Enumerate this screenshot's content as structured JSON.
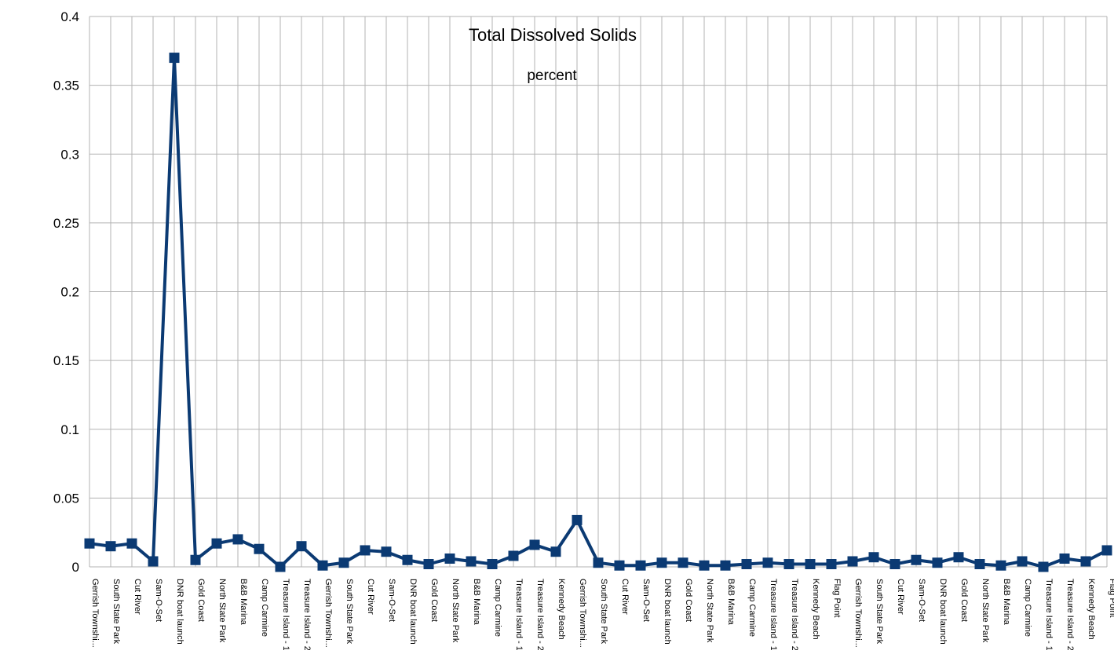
{
  "chart_data": {
    "type": "line",
    "title": "Total Dissolved Solids",
    "subtitle": "percent",
    "xlabel": "",
    "ylabel": "",
    "ylim": [
      0,
      0.4
    ],
    "yticks": [
      "0",
      "0.05",
      "0.1",
      "0.15",
      "0.2",
      "0.25",
      "0.3",
      "0.35",
      "0.4"
    ],
    "grid": true,
    "legend": "none",
    "categories": [
      "Gerrish Townshi...",
      "South State Park",
      "Cut River",
      "Sam-O-Set",
      "DNR boat launch",
      "Gold Coast",
      "North State Park",
      "B&B Marina",
      "Camp Carmine",
      "Treasure Island - 1",
      "Treasure Island - 2",
      "Gerrish Townshi...",
      "South State Park",
      "Cut River",
      "Sam-O-Set",
      "DNR boat launch",
      "Gold Coast",
      "North State Park",
      "B&B Marina",
      "Camp Carmine",
      "Treasure Island - 1",
      "Treasure Island - 2",
      "Kennedy Beach",
      "Gerrish Townshi...",
      "South State Park",
      "Cut River",
      "Sam-O-Set",
      "DNR boat launch",
      "Gold Coast",
      "North State Park",
      "B&B Marina",
      "Camp Carmine",
      "Treasure Island - 1",
      "Treasure Island - 2",
      "Kennedy Beach",
      "Flag Point",
      "Gerrish Townshi...",
      "South State Park",
      "Cut River",
      "Sam-O-Set",
      "DNR boat launch",
      "Gold Coast",
      "North State Park",
      "B&B Marina",
      "Camp Carmine",
      "Treasure Island - 1",
      "Treasure Island - 2",
      "Kennedy Beach",
      "Flag Point"
    ],
    "series": [
      {
        "values": [
          0.017,
          0.015,
          0.017,
          0.004,
          0.37,
          0.005,
          0.017,
          0.02,
          0.013,
          0.0,
          0.015,
          0.001,
          0.003,
          0.012,
          0.011,
          0.005,
          0.002,
          0.006,
          0.004,
          0.002,
          0.008,
          0.016,
          0.011,
          0.034,
          0.003,
          0.001,
          0.001,
          0.003,
          0.003,
          0.001,
          0.001,
          0.002,
          0.003,
          0.002,
          0.002,
          0.002,
          0.004,
          0.007,
          0.002,
          0.005,
          0.003,
          0.007,
          0.002,
          0.001,
          0.004,
          0.0,
          0.006,
          0.004,
          0.012
        ]
      }
    ],
    "colors": {
      "line": "#0b3a73",
      "marker": "#0b3a73",
      "grid": "#b3b3b3",
      "axis": "#b3b3b3"
    }
  }
}
